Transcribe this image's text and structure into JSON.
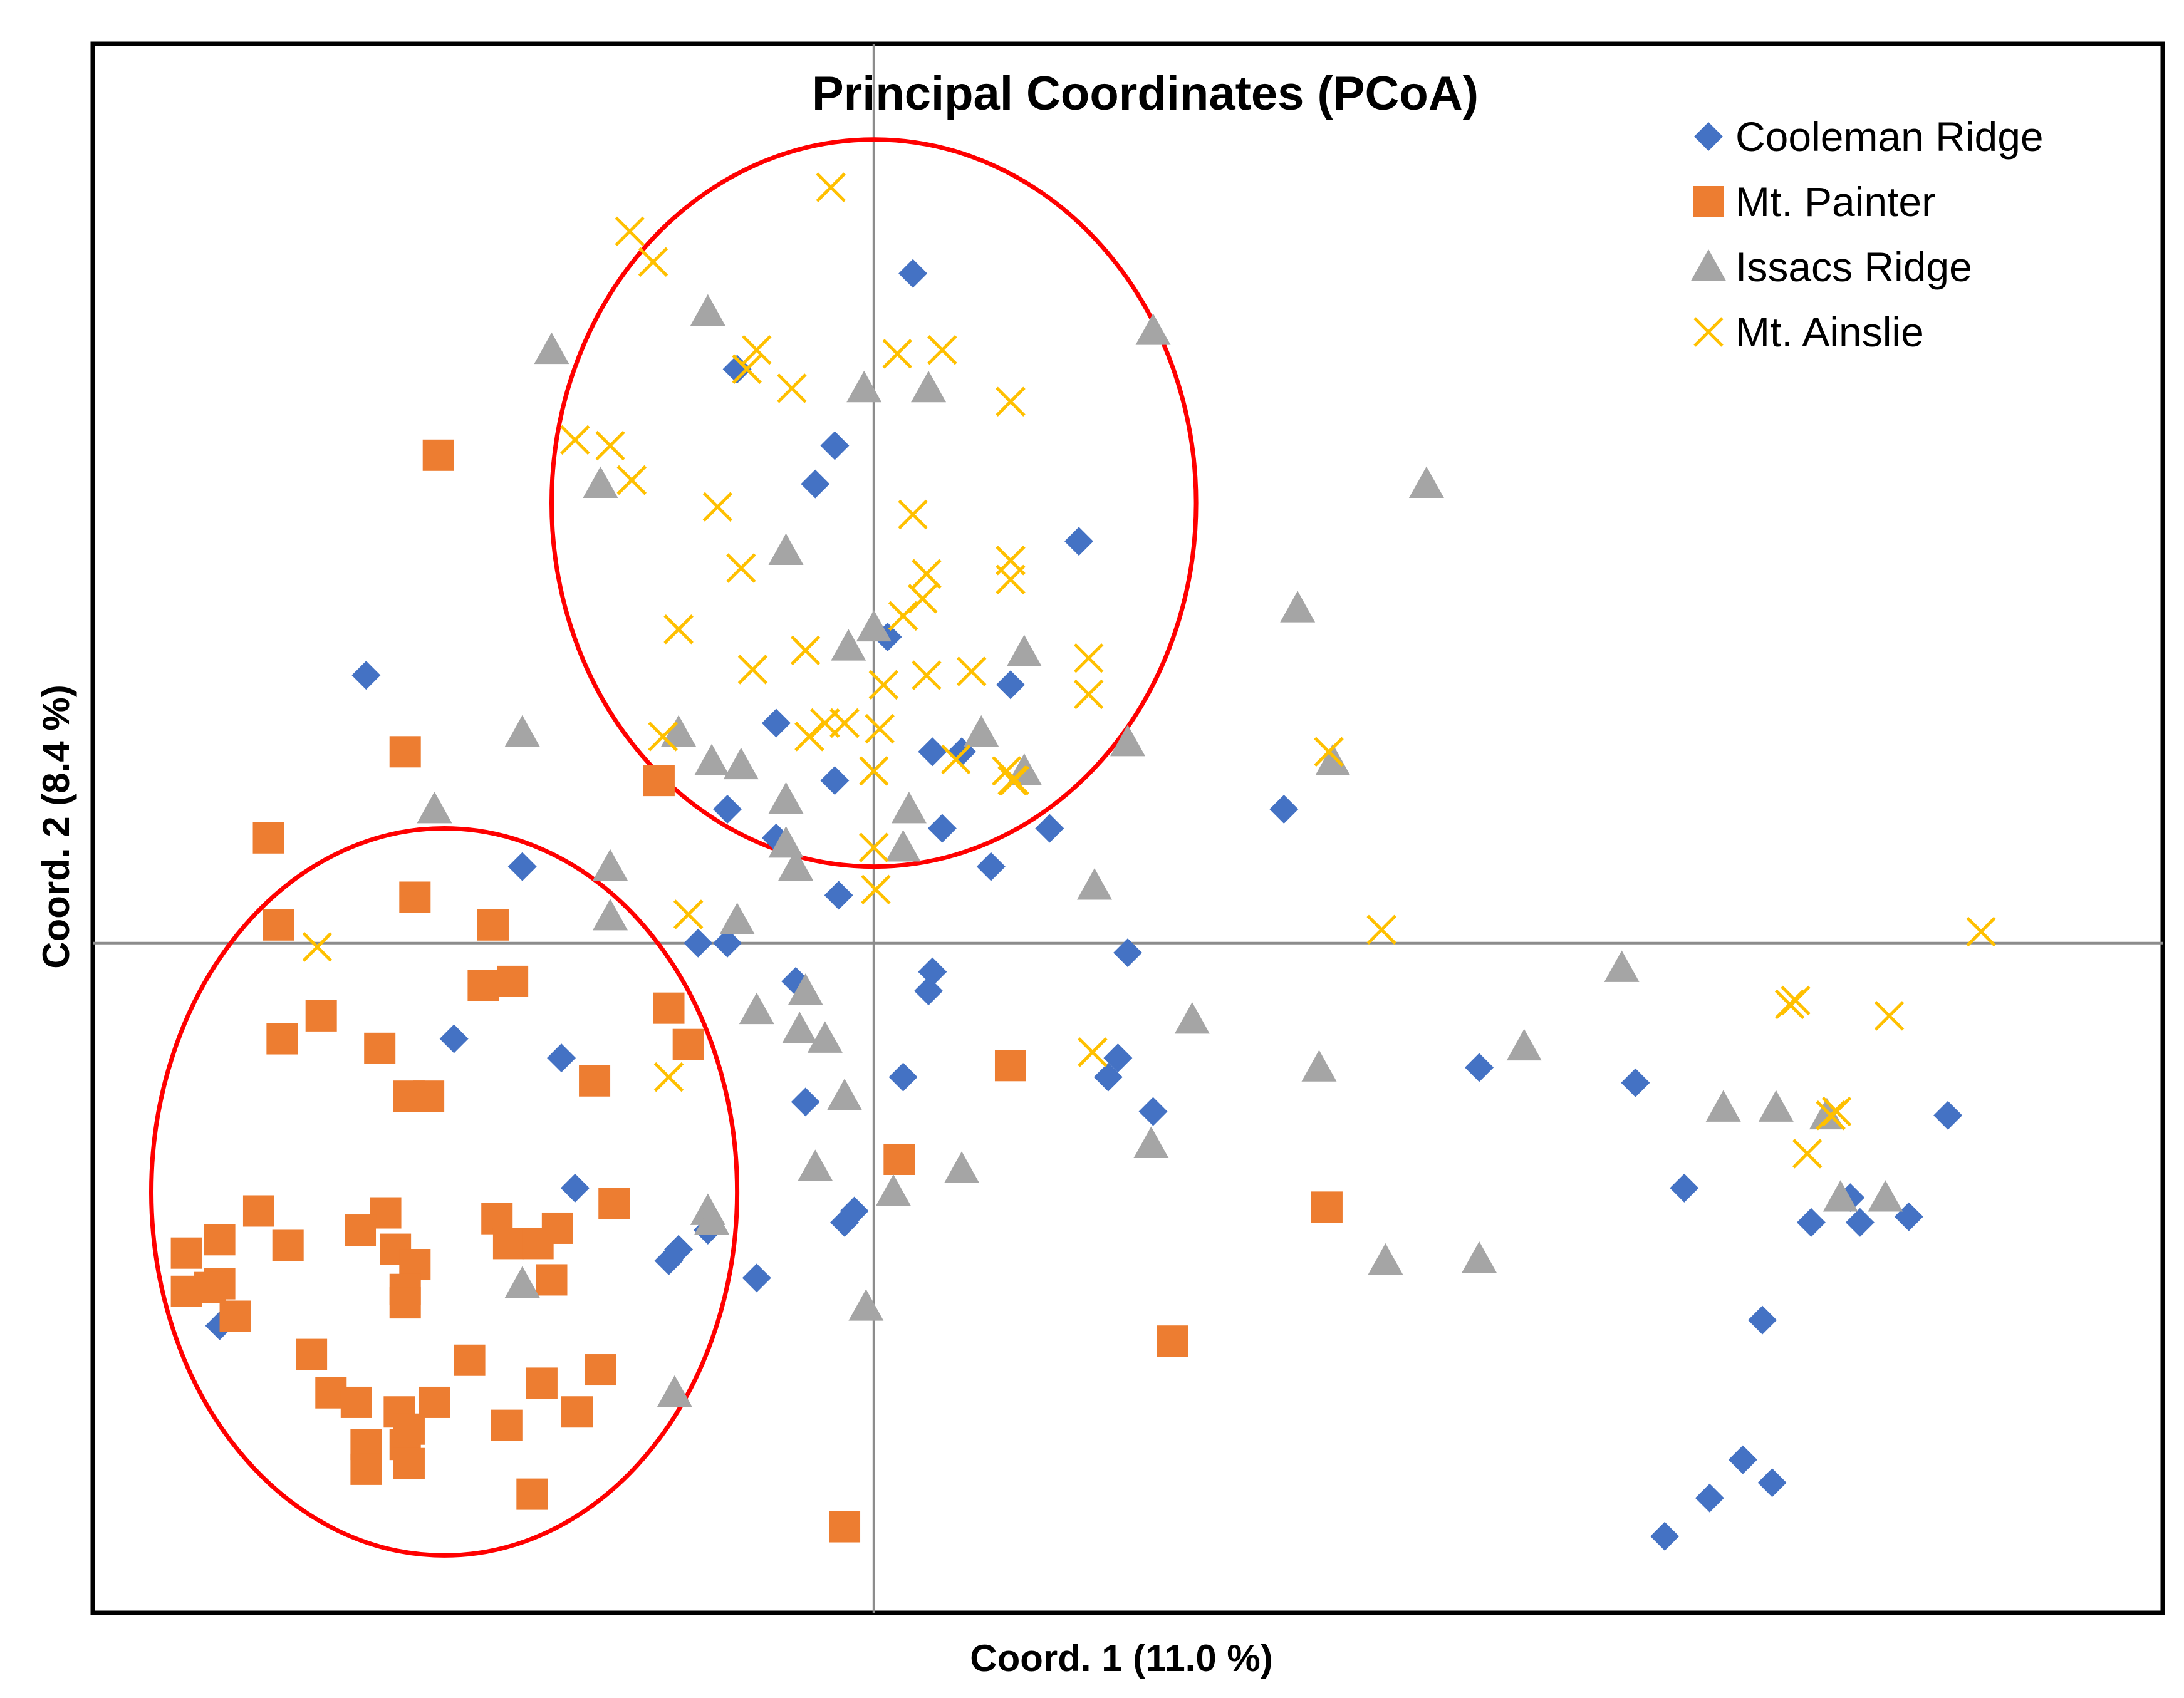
{
  "chart_data": {
    "type": "scatter",
    "title": "Principal Coordinates (PCoA)",
    "xlabel": "Coord. 1 (11.0 %)",
    "ylabel": "Coord. 2 (8.4 %)",
    "xlim": [
      -0.4,
      0.66
    ],
    "ylim": [
      -0.35,
      0.47
    ],
    "grid": false,
    "axis_lines_at_zero": true,
    "legend_position": "top-right",
    "annotations": [
      {
        "type": "ellipse",
        "label": "",
        "color": "#ff0000",
        "center": [
          -0.22,
          -0.13
        ],
        "radii": [
          0.15,
          0.19
        ]
      },
      {
        "type": "ellipse",
        "label": "",
        "color": "#ff0000",
        "center": [
          0.0,
          0.23
        ],
        "radii": [
          0.165,
          0.19
        ]
      }
    ],
    "series": [
      {
        "name": "Cooleman Ridge",
        "marker": "diamond",
        "color": "#4472c4",
        "points": [
          [
            0.02,
            0.35
          ],
          [
            -0.07,
            0.3
          ],
          [
            -0.02,
            0.26
          ],
          [
            -0.03,
            0.24
          ],
          [
            0.105,
            0.21
          ],
          [
            0.007,
            0.16
          ],
          [
            -0.26,
            0.14
          ],
          [
            0.07,
            0.135
          ],
          [
            -0.05,
            0.115
          ],
          [
            0.03,
            0.1
          ],
          [
            0.045,
            0.1
          ],
          [
            -0.02,
            0.085
          ],
          [
            0.21,
            0.07
          ],
          [
            -0.075,
            0.07
          ],
          [
            0.035,
            0.06
          ],
          [
            -0.05,
            0.055
          ],
          [
            0.09,
            0.06
          ],
          [
            -0.18,
            0.04
          ],
          [
            -0.018,
            0.025
          ],
          [
            0.06,
            0.04
          ],
          [
            -0.09,
            0.0
          ],
          [
            -0.075,
            0.0
          ],
          [
            0.13,
            -0.005
          ],
          [
            0.03,
            -0.015
          ],
          [
            -0.04,
            -0.02
          ],
          [
            0.028,
            -0.025
          ],
          [
            -0.215,
            -0.05
          ],
          [
            -0.16,
            -0.06
          ],
          [
            0.125,
            -0.06
          ],
          [
            0.015,
            -0.07
          ],
          [
            0.31,
            -0.065
          ],
          [
            0.12,
            -0.07
          ],
          [
            0.39,
            -0.073
          ],
          [
            0.55,
            -0.09
          ],
          [
            -0.035,
            -0.083
          ],
          [
            0.143,
            -0.088
          ],
          [
            -0.153,
            -0.128
          ],
          [
            0.415,
            -0.128
          ],
          [
            -0.01,
            -0.14
          ],
          [
            -0.015,
            -0.146
          ],
          [
            0.48,
            -0.146
          ],
          [
            0.505,
            -0.146
          ],
          [
            0.53,
            -0.143
          ],
          [
            0.5,
            -0.133
          ],
          [
            -0.085,
            -0.15
          ],
          [
            -0.1,
            -0.16
          ],
          [
            -0.105,
            -0.166
          ],
          [
            -0.06,
            -0.175
          ],
          [
            0.455,
            -0.197
          ],
          [
            -0.335,
            -0.2
          ],
          [
            0.445,
            -0.27
          ],
          [
            0.46,
            -0.282
          ],
          [
            0.428,
            -0.29
          ],
          [
            0.405,
            -0.31
          ]
        ]
      },
      {
        "name": "Mt. Painter",
        "marker": "square",
        "color": "#ed7d31",
        "points": [
          [
            -0.223,
            0.255
          ],
          [
            -0.24,
            0.1
          ],
          [
            -0.11,
            0.085
          ],
          [
            -0.31,
            0.055
          ],
          [
            -0.235,
            0.024
          ],
          [
            -0.195,
            0.0095
          ],
          [
            -0.305,
            0.0095
          ],
          [
            -0.185,
            -0.02
          ],
          [
            -0.2,
            -0.022
          ],
          [
            -0.105,
            -0.034
          ],
          [
            -0.283,
            -0.038
          ],
          [
            -0.303,
            -0.05
          ],
          [
            -0.253,
            -0.055
          ],
          [
            -0.095,
            -0.053
          ],
          [
            0.07,
            -0.064
          ],
          [
            -0.143,
            -0.072
          ],
          [
            -0.238,
            -0.08
          ],
          [
            -0.228,
            -0.08
          ],
          [
            0.013,
            -0.113
          ],
          [
            -0.133,
            -0.136
          ],
          [
            0.232,
            -0.138
          ],
          [
            -0.315,
            -0.14
          ],
          [
            -0.25,
            -0.141
          ],
          [
            -0.193,
            -0.144
          ],
          [
            -0.263,
            -0.15
          ],
          [
            -0.162,
            -0.149
          ],
          [
            -0.335,
            -0.155
          ],
          [
            -0.3,
            -0.158
          ],
          [
            -0.352,
            -0.162
          ],
          [
            -0.187,
            -0.157
          ],
          [
            -0.245,
            -0.16
          ],
          [
            -0.172,
            -0.157
          ],
          [
            -0.235,
            -0.168
          ],
          [
            -0.335,
            -0.178
          ],
          [
            -0.34,
            -0.18
          ],
          [
            -0.352,
            -0.182
          ],
          [
            -0.165,
            -0.176
          ],
          [
            -0.24,
            -0.181
          ],
          [
            -0.327,
            -0.195
          ],
          [
            -0.24,
            -0.188
          ],
          [
            0.153,
            -0.208
          ],
          [
            -0.288,
            -0.215
          ],
          [
            -0.207,
            -0.218
          ],
          [
            -0.14,
            -0.223
          ],
          [
            -0.17,
            -0.23
          ],
          [
            -0.278,
            -0.235
          ],
          [
            -0.225,
            -0.24
          ],
          [
            -0.265,
            -0.24
          ],
          [
            -0.243,
            -0.245
          ],
          [
            -0.152,
            -0.245
          ],
          [
            -0.188,
            -0.252
          ],
          [
            -0.238,
            -0.254
          ],
          [
            -0.24,
            -0.262
          ],
          [
            -0.26,
            -0.262
          ],
          [
            -0.238,
            -0.272
          ],
          [
            -0.26,
            -0.275
          ],
          [
            -0.175,
            -0.288
          ],
          [
            -0.015,
            -0.305
          ]
        ]
      },
      {
        "name": "Issacs Ridge",
        "marker": "triangle",
        "color": "#a5a5a5",
        "points": [
          [
            -0.085,
            0.33
          ],
          [
            0.143,
            0.32
          ],
          [
            -0.165,
            0.31
          ],
          [
            -0.005,
            0.29
          ],
          [
            0.028,
            0.29
          ],
          [
            0.283,
            0.24
          ],
          [
            -0.14,
            0.24
          ],
          [
            -0.045,
            0.205
          ],
          [
            0.217,
            0.175
          ],
          [
            0.0,
            0.165
          ],
          [
            -0.013,
            0.155
          ],
          [
            0.077,
            0.152
          ],
          [
            0.055,
            0.11
          ],
          [
            -0.18,
            0.11
          ],
          [
            -0.1,
            0.11
          ],
          [
            0.13,
            0.105
          ],
          [
            -0.083,
            0.095
          ],
          [
            -0.068,
            0.093
          ],
          [
            0.077,
            0.09
          ],
          [
            0.235,
            0.095
          ],
          [
            -0.045,
            0.075
          ],
          [
            0.018,
            0.07
          ],
          [
            -0.225,
            0.07
          ],
          [
            -0.045,
            0.052
          ],
          [
            0.015,
            0.05
          ],
          [
            -0.04,
            0.04
          ],
          [
            0.113,
            0.03
          ],
          [
            -0.135,
            0.04
          ],
          [
            -0.135,
            0.014
          ],
          [
            -0.07,
            0.012
          ],
          [
            0.383,
            -0.013
          ],
          [
            -0.035,
            -0.025
          ],
          [
            -0.06,
            -0.035
          ],
          [
            0.163,
            -0.04
          ],
          [
            -0.038,
            -0.045
          ],
          [
            -0.025,
            -0.05
          ],
          [
            0.333,
            -0.054
          ],
          [
            0.228,
            -0.065
          ],
          [
            -0.015,
            -0.08
          ],
          [
            0.435,
            -0.086
          ],
          [
            0.462,
            -0.086
          ],
          [
            0.488,
            -0.09
          ],
          [
            0.142,
            -0.105
          ],
          [
            -0.03,
            -0.117
          ],
          [
            0.045,
            -0.118
          ],
          [
            0.01,
            -0.13
          ],
          [
            0.495,
            -0.133
          ],
          [
            0.518,
            -0.133
          ],
          [
            -0.085,
            -0.14
          ],
          [
            -0.083,
            -0.145
          ],
          [
            0.262,
            -0.166
          ],
          [
            0.31,
            -0.165
          ],
          [
            -0.18,
            -0.178
          ],
          [
            -0.004,
            -0.19
          ],
          [
            -0.102,
            -0.235
          ]
        ]
      },
      {
        "name": "Mt. Ainslie",
        "marker": "x",
        "color": "#ffc000",
        "points": [
          [
            -0.022,
            0.395
          ],
          [
            -0.125,
            0.372
          ],
          [
            -0.113,
            0.356
          ],
          [
            -0.06,
            0.31
          ],
          [
            -0.065,
            0.3
          ],
          [
            0.012,
            0.308
          ],
          [
            0.035,
            0.31
          ],
          [
            -0.042,
            0.29
          ],
          [
            0.07,
            0.283
          ],
          [
            -0.153,
            0.263
          ],
          [
            -0.135,
            0.26
          ],
          [
            -0.124,
            0.242
          ],
          [
            -0.08,
            0.228
          ],
          [
            0.02,
            0.224
          ],
          [
            -0.068,
            0.196
          ],
          [
            0.07,
            0.2
          ],
          [
            0.027,
            0.193
          ],
          [
            0.07,
            0.19
          ],
          [
            0.025,
            0.18
          ],
          [
            0.015,
            0.171
          ],
          [
            -0.1,
            0.164
          ],
          [
            -0.035,
            0.153
          ],
          [
            -0.062,
            0.143
          ],
          [
            0.005,
            0.135
          ],
          [
            0.027,
            0.14
          ],
          [
            0.05,
            0.142
          ],
          [
            0.11,
            0.149
          ],
          [
            0.11,
            0.13
          ],
          [
            -0.025,
            0.115
          ],
          [
            -0.015,
            0.115
          ],
          [
            -0.108,
            0.108
          ],
          [
            0.003,
            0.112
          ],
          [
            -0.033,
            0.108
          ],
          [
            0.233,
            0.1
          ],
          [
            0.042,
            0.096
          ],
          [
            0.068,
            0.09
          ],
          [
            0.071,
            0.085
          ],
          [
            0.0,
            0.09
          ],
          [
            0.072,
            0.085
          ],
          [
            0.0,
            0.05
          ],
          [
            0.001,
            0.028
          ],
          [
            -0.095,
            0.015
          ],
          [
            0.26,
            0.007
          ],
          [
            0.567,
            0.006
          ],
          [
            -0.285,
            -0.002
          ],
          [
            0.472,
            -0.03
          ],
          [
            0.469,
            -0.032
          ],
          [
            0.52,
            -0.038
          ],
          [
            0.112,
            -0.057
          ],
          [
            -0.105,
            -0.07
          ],
          [
            0.493,
            -0.088
          ],
          [
            0.49,
            -0.09
          ],
          [
            0.478,
            -0.11
          ]
        ]
      }
    ]
  }
}
